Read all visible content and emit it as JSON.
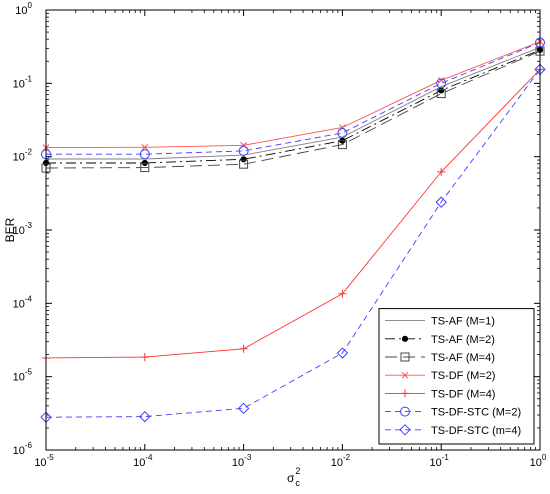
{
  "chart_data": {
    "type": "line",
    "xscale": "log",
    "yscale": "log",
    "xlabel": "σ",
    "xlabel_sup": "2",
    "xlabel_sub": "c",
    "ylabel": "BER",
    "xlim": [
      1e-05,
      1
    ],
    "ylim": [
      1e-06,
      1
    ],
    "x_ticks": [
      1e-05,
      0.0001,
      0.001,
      0.01,
      0.1,
      1
    ],
    "y_ticks": [
      1e-06,
      1e-05,
      0.0001,
      0.001,
      0.01,
      0.1,
      1
    ],
    "x_tick_labels": [
      {
        "base": "10",
        "exp": "-5"
      },
      {
        "base": "10",
        "exp": "-4"
      },
      {
        "base": "10",
        "exp": "-3"
      },
      {
        "base": "10",
        "exp": "-2"
      },
      {
        "base": "10",
        "exp": "-1"
      },
      {
        "base": "10",
        "exp": "0"
      }
    ],
    "y_tick_labels": [
      {
        "base": "10",
        "exp": "-6"
      },
      {
        "base": "10",
        "exp": "-5"
      },
      {
        "base": "10",
        "exp": "-4"
      },
      {
        "base": "10",
        "exp": "-3"
      },
      {
        "base": "10",
        "exp": "-2"
      },
      {
        "base": "10",
        "exp": "-1"
      },
      {
        "base": "10",
        "exp": "0"
      }
    ],
    "grid": false,
    "legend_position": "bottom-right",
    "x": [
      1e-05,
      0.0001,
      0.001,
      0.01,
      0.1,
      1
    ],
    "series": [
      {
        "name": "TS-AF (M=1)",
        "color": "#808080",
        "dash": "",
        "marker": "none",
        "values": [
          0.0093,
          0.0093,
          0.0105,
          0.0185,
          0.09,
          0.31
        ]
      },
      {
        "name": "TS-AF (M=2)",
        "color": "#000000",
        "dash": "10,4,2,4",
        "marker": "dot",
        "values": [
          0.0082,
          0.0082,
          0.0092,
          0.0165,
          0.08,
          0.285
        ]
      },
      {
        "name": "TS-AF (M=4)",
        "color": "#444444",
        "dash": "12,6",
        "marker": "square",
        "values": [
          0.007,
          0.0071,
          0.0079,
          0.0146,
          0.0725,
          0.275
        ]
      },
      {
        "name": "TS-DF (M=2)",
        "color": "#ff5050",
        "dash": "",
        "marker": "x",
        "values": [
          0.0133,
          0.0134,
          0.0143,
          0.025,
          0.11,
          0.37
        ]
      },
      {
        "name": "TS-DF (M=4)",
        "color": "#ff3030",
        "dash": "",
        "marker": "plus",
        "values": [
          1.8e-05,
          1.85e-05,
          2.4e-05,
          0.000135,
          0.0062,
          0.155
        ]
      },
      {
        "name": "TS-DF-STC (M=2)",
        "color": "#4040ff",
        "dash": "6,4",
        "marker": "circle",
        "values": [
          0.0108,
          0.0108,
          0.012,
          0.021,
          0.1,
          0.36
        ]
      },
      {
        "name": "TS-DF-STC (m=4)",
        "color": "#4040ff",
        "dash": "6,4",
        "marker": "diamond",
        "values": [
          2.8e-06,
          2.85e-06,
          3.7e-06,
          2.1e-05,
          0.0024,
          0.155
        ]
      }
    ]
  }
}
